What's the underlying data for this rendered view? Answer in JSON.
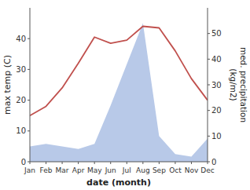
{
  "chart_data": {
    "type": "line",
    "categories": [
      "Jan",
      "Feb",
      "Mar",
      "Apr",
      "May",
      "Jun",
      "Jul",
      "Aug",
      "Sep",
      "Oct",
      "Nov",
      "Dec"
    ],
    "xlabel": "date (month)",
    "ylabel": "max temp (C)",
    "y2label": "med. precipitation\n(kg/m2)",
    "ylim": [
      0,
      50
    ],
    "yticks": [
      0,
      10,
      20,
      30,
      40
    ],
    "y2lim": [
      0,
      60
    ],
    "y2ticks": [
      0,
      10,
      20,
      30,
      40,
      50
    ],
    "series": [
      {
        "type": "area",
        "axis": "y2",
        "color": "#b8c9e8",
        "values": [
          6,
          7,
          6,
          5,
          7,
          22,
          38,
          54,
          10,
          3,
          2,
          9
        ]
      },
      {
        "type": "line",
        "color": "#c0504d",
        "values": [
          15,
          18,
          24,
          32,
          40.5,
          38.5,
          39.5,
          44,
          43.5,
          36,
          27,
          20
        ]
      }
    ]
  }
}
